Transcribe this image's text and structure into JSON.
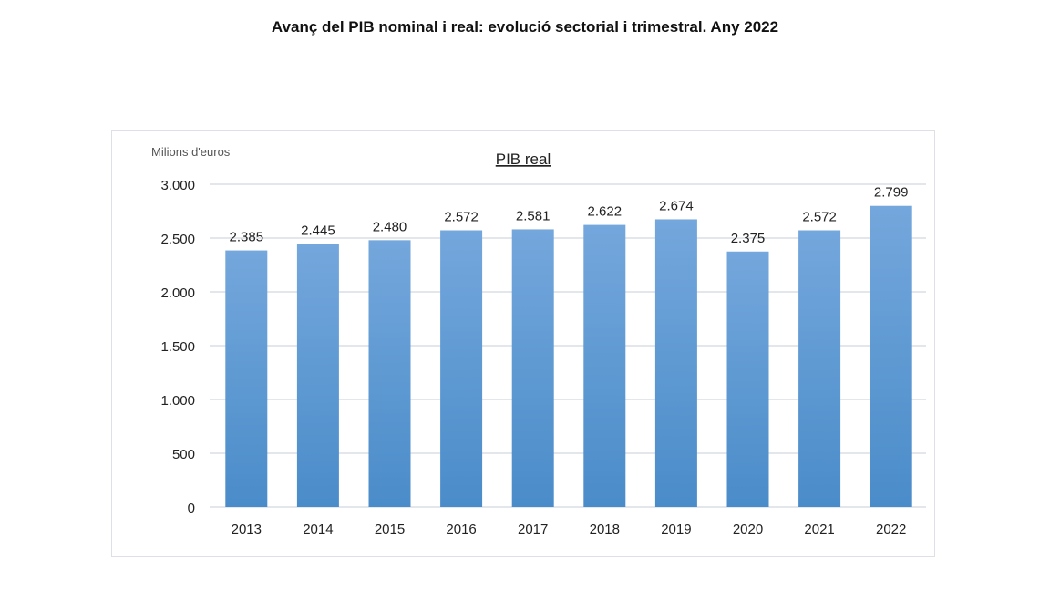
{
  "title": "Avanç del PIB nominal i real: evolució sectorial i trimestral. Any 2022",
  "chart_data": {
    "type": "bar",
    "title": "PIB real",
    "ylabel": "Milions d'euros",
    "xlabel": "",
    "categories": [
      "2013",
      "2014",
      "2015",
      "2016",
      "2017",
      "2018",
      "2019",
      "2020",
      "2021",
      "2022"
    ],
    "values": [
      2385,
      2445,
      2480,
      2572,
      2581,
      2622,
      2674,
      2375,
      2572,
      2799
    ],
    "value_labels": [
      "2.385",
      "2.445",
      "2.480",
      "2.572",
      "2.581",
      "2.622",
      "2.674",
      "2.375",
      "2.572",
      "2.799"
    ],
    "ylim": [
      0,
      3000
    ],
    "yticks": [
      0,
      500,
      1000,
      1500,
      2000,
      2500,
      3000
    ],
    "ytick_labels": [
      "0",
      "500",
      "1.000",
      "1.500",
      "2.000",
      "2.500",
      "3.000"
    ],
    "grid": true,
    "bar_color_top": "#74a7dc",
    "bar_color_bottom": "#4a8cc9"
  }
}
